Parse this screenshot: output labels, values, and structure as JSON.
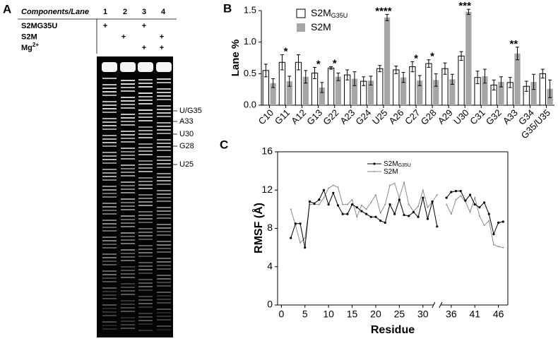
{
  "panel_letters": [
    "A",
    "B",
    "C"
  ],
  "gel": {
    "header": "Components/Lane",
    "lanes": [
      "1",
      "2",
      "3",
      "4"
    ],
    "rows": [
      {
        "label": "S2MG35U",
        "cells": [
          "+",
          null,
          "+",
          null
        ]
      },
      {
        "label": "S2M",
        "cells": [
          null,
          "+",
          null,
          "+"
        ]
      },
      {
        "label": "Mg",
        "superscript": "2+",
        "cells": [
          null,
          null,
          "+",
          "+"
        ]
      }
    ],
    "band_labels": [
      "U/G35",
      "A33",
      "U30",
      "G28",
      "U25"
    ]
  },
  "chart_data": [
    {
      "type": "bar",
      "ylabel": "Lane %",
      "categories": [
        "C10",
        "G11",
        "A12",
        "G13",
        "G22",
        "A23",
        "G24",
        "U25",
        "A26",
        "C27",
        "G28",
        "A29",
        "U30",
        "C31",
        "G32",
        "A33",
        "G34",
        "G35/U35"
      ],
      "series": [
        {
          "name": "S2M",
          "name_subscript": "G35U",
          "color": "#ffffff",
          "values": [
            0.55,
            0.68,
            0.68,
            0.51,
            0.59,
            0.48,
            0.38,
            0.58,
            0.56,
            0.61,
            0.66,
            0.58,
            0.78,
            0.44,
            0.32,
            0.36,
            0.3,
            0.5
          ],
          "errors": [
            0.1,
            0.12,
            0.12,
            0.09,
            0.02,
            0.08,
            0.07,
            0.05,
            0.06,
            0.08,
            0.06,
            0.09,
            0.07,
            0.1,
            0.08,
            0.08,
            0.08,
            0.07
          ]
        },
        {
          "name": "S2M",
          "color": "#a6a6a6",
          "values": [
            0.35,
            0.38,
            0.45,
            0.28,
            0.45,
            0.42,
            0.39,
            1.39,
            0.44,
            0.39,
            0.4,
            0.41,
            1.48,
            0.46,
            0.37,
            0.82,
            0.37,
            0.26
          ],
          "errors": [
            0.07,
            0.08,
            0.1,
            0.08,
            0.06,
            0.11,
            0.07,
            0.05,
            0.08,
            0.08,
            0.1,
            0.08,
            0.04,
            0.11,
            0.08,
            0.1,
            0.12,
            0.14
          ]
        }
      ],
      "significance": [
        null,
        "*",
        null,
        "*",
        "*",
        null,
        null,
        "****",
        null,
        "*",
        "*",
        null,
        "***",
        null,
        null,
        "**",
        null,
        null
      ],
      "ylim": [
        0,
        1.5
      ],
      "yticks": [
        {
          "value": 0,
          "label": "0.0"
        },
        0.5,
        {
          "value": 1,
          "label": "1.0"
        },
        1.5
      ]
    },
    {
      "type": "line",
      "xlabel": "Residue",
      "ylabel": "RMSF (Å)",
      "x": [
        2,
        3,
        4,
        5,
        6,
        7,
        8,
        9,
        10,
        11,
        12,
        13,
        14,
        15,
        16,
        17,
        18,
        19,
        20,
        21,
        22,
        23,
        24,
        25,
        26,
        27,
        28,
        29,
        30,
        31,
        32,
        33,
        34,
        35,
        36,
        37,
        38,
        39,
        40,
        41,
        42,
        43,
        44,
        45,
        46,
        47
      ],
      "series": [
        {
          "name": "S2M",
          "name_subscript": "G35U",
          "color": "#000000",
          "values": [
            7,
            8.5,
            8.5,
            6,
            10.8,
            10.6,
            11,
            12,
            10.5,
            11.7,
            10.4,
            9.5,
            9.5,
            10.5,
            10.2,
            9.8,
            9.5,
            9.2,
            9.2,
            8.8,
            8.6,
            10.5,
            9.5,
            11,
            9.4,
            9.3,
            9.7,
            9.2,
            11.2,
            9,
            10.8,
            8.2,
            null,
            11.2,
            11.8,
            11.9,
            11.9,
            10.9,
            11.5,
            10.5,
            10.2,
            10.7,
            9.5,
            7.4,
            8.6,
            8.7
          ]
        },
        {
          "name": "S2M",
          "color": "#8c8c8c",
          "values": [
            10,
            8.3,
            6.5,
            7,
            10.5,
            10.5,
            10.5,
            11.2,
            12.2,
            12.5,
            12.3,
            10.5,
            10.5,
            11,
            9.2,
            10.4,
            10,
            10.7,
            11.5,
            9.6,
            10.5,
            12.5,
            12.7,
            11.2,
            12.8,
            10.5,
            9.8,
            10.3,
            12,
            10.2,
            10.8,
            11.5,
            null,
            10.5,
            9.5,
            11,
            11.4,
            10.8,
            9.7,
            11.2,
            9.3,
            8.3,
            8.8,
            6.3,
            6.1,
            6
          ]
        }
      ],
      "xlim": [
        -0.8,
        48
      ],
      "xticks": [
        0,
        5,
        10,
        15,
        20,
        25,
        30,
        36,
        41,
        46
      ],
      "ylim": [
        0,
        16
      ],
      "yticks": [
        0,
        4,
        8,
        12,
        16
      ]
    }
  ]
}
